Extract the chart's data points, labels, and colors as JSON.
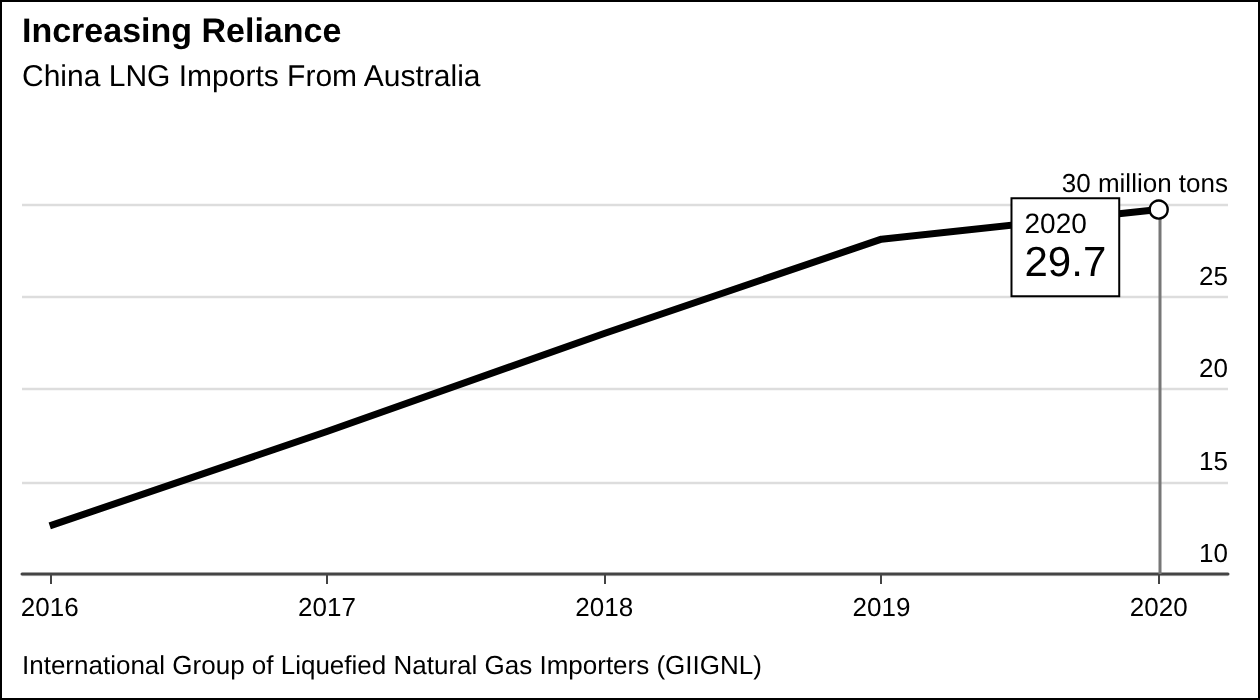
{
  "chart_data": {
    "type": "line",
    "title": "Increasing Reliance",
    "subtitle": "China LNG Imports From Australia",
    "annotations": [
      "International Group of Liquefied Natural Gas Importers (GIIGNL)",
      {
        "text": "2020",
        "x": 2020,
        "y": 29.7
      }
    ],
    "x": [
      2016,
      2017,
      2018,
      2019,
      2020
    ],
    "series": [
      {
        "color": "#000000",
        "values": [
          12.6,
          17.7,
          23.0,
          28.1,
          29.7
        ],
        "value_labels": [
          null,
          null,
          null,
          null,
          "29.7"
        ]
      }
    ],
    "xlim": [
      2015.9,
      2020.25
    ],
    "xticks": [
      2016,
      2017,
      2018,
      2019,
      2020
    ],
    "ylim": [
      10,
      30
    ],
    "yticks": [
      10,
      15,
      20,
      25,
      {
        "value": 30,
        "label": "30 million tons"
      }
    ],
    "grid": "y"
  }
}
